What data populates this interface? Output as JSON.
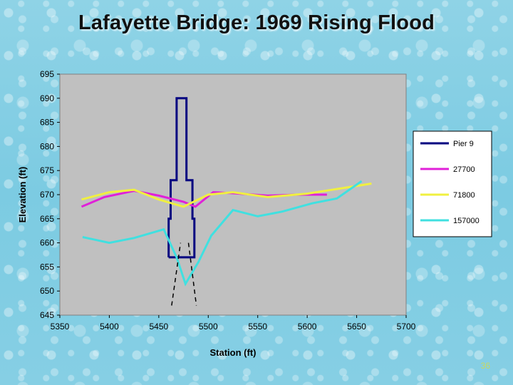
{
  "slide": {
    "title": "Lafayette Bridge: 1969 Rising Flood",
    "page_number": "36"
  },
  "chart_data": {
    "type": "line",
    "title": "Lafayette Bridge: 1969 Rising Flood",
    "xlabel": "Station (ft)",
    "ylabel": "Elevation (ft)",
    "xlim": [
      5350,
      5700
    ],
    "ylim": [
      645,
      695
    ],
    "x_ticks": [
      5350,
      5400,
      5450,
      5500,
      5550,
      5600,
      5650,
      5700
    ],
    "y_ticks": [
      645,
      650,
      655,
      660,
      665,
      670,
      675,
      680,
      685,
      690,
      695
    ],
    "plot_background": "#c0c0c0",
    "grid": false,
    "legend_position": "right",
    "series": [
      {
        "name": "Pier 9",
        "color": "#000080",
        "points": [
          [
            5460,
            657
          ],
          [
            5460,
            665
          ],
          [
            5462,
            665
          ],
          [
            5462,
            673
          ],
          [
            5468,
            673
          ],
          [
            5468,
            690
          ],
          [
            5478,
            690
          ],
          [
            5478,
            673
          ],
          [
            5484,
            673
          ],
          [
            5484,
            665
          ],
          [
            5486,
            665
          ],
          [
            5486,
            657
          ],
          [
            5460,
            657
          ]
        ]
      },
      {
        "name": "27700",
        "color": "#e020d8",
        "points": [
          [
            5372,
            667.5
          ],
          [
            5395,
            669.5
          ],
          [
            5425,
            670.8
          ],
          [
            5450,
            669.8
          ],
          [
            5475,
            668.5
          ],
          [
            5487,
            667.5
          ],
          [
            5505,
            670.5
          ],
          [
            5525,
            670.3
          ],
          [
            5560,
            669.8
          ],
          [
            5590,
            670
          ],
          [
            5620,
            670
          ]
        ]
      },
      {
        "name": "71800",
        "color": "#f0f040",
        "points": [
          [
            5372,
            669
          ],
          [
            5400,
            670.5
          ],
          [
            5425,
            671
          ],
          [
            5450,
            669
          ],
          [
            5475,
            667.5
          ],
          [
            5500,
            670
          ],
          [
            5525,
            670.5
          ],
          [
            5560,
            669.5
          ],
          [
            5600,
            670.2
          ],
          [
            5625,
            671
          ],
          [
            5665,
            672.3
          ]
        ]
      },
      {
        "name": "157000",
        "color": "#40e0e0",
        "points": [
          [
            5373,
            661.2
          ],
          [
            5400,
            660
          ],
          [
            5425,
            661
          ],
          [
            5455,
            662.8
          ],
          [
            5468,
            657
          ],
          [
            5477,
            651.5
          ],
          [
            5490,
            656
          ],
          [
            5503,
            661.5
          ],
          [
            5525,
            666.8
          ],
          [
            5550,
            665.5
          ],
          [
            5575,
            666.5
          ],
          [
            5605,
            668.2
          ],
          [
            5630,
            669.2
          ],
          [
            5655,
            672.8
          ]
        ]
      },
      {
        "name": "",
        "color": "#000000",
        "dashed": true,
        "points": [
          [
            5463,
            647
          ],
          [
            5472,
            660
          ]
        ]
      },
      {
        "name": "",
        "color": "#000000",
        "dashed": true,
        "points": [
          [
            5480,
            660
          ],
          [
            5488,
            647
          ]
        ]
      }
    ]
  }
}
